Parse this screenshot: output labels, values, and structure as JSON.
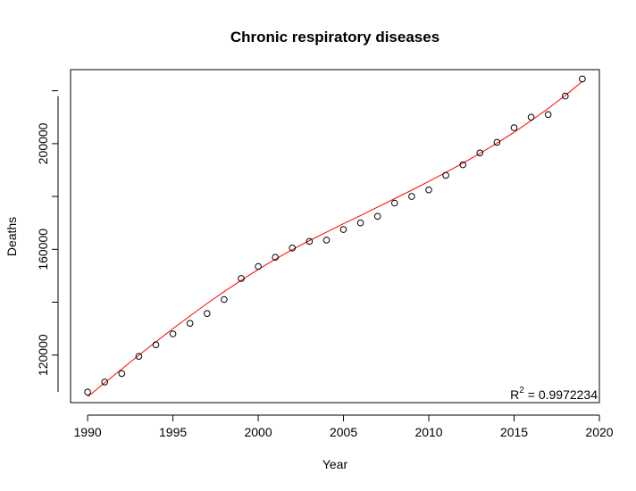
{
  "chart_data": {
    "type": "scatter",
    "title": "Chronic respiratory diseases",
    "xlabel": "Year",
    "ylabel": "Deaths",
    "xlim": [
      1989,
      2020
    ],
    "ylim": [
      102000,
      228000
    ],
    "xticks": [
      1990,
      1995,
      2000,
      2005,
      2010,
      2015,
      2020
    ],
    "yticks": [
      120000,
      160000,
      200000
    ],
    "grid": false,
    "annotation": {
      "prefix": "R",
      "superscript": "2",
      "value": " = 0.9972234"
    },
    "colors": {
      "points": "#000000",
      "fit_line": "#ff0000"
    },
    "series": [
      {
        "type": "scatter",
        "x": [
          1990,
          1991,
          1992,
          1993,
          1994,
          1995,
          1996,
          1997,
          1998,
          1999,
          2000,
          2001,
          2002,
          2003,
          2004,
          2005,
          2006,
          2007,
          2008,
          2009,
          2010,
          2011,
          2012,
          2013,
          2014,
          2015,
          2016,
          2017,
          2018,
          2019
        ],
        "values": [
          106000,
          109800,
          113000,
          119500,
          123900,
          128000,
          132000,
          135700,
          141000,
          149000,
          153500,
          157000,
          160500,
          163000,
          163500,
          167500,
          170000,
          172500,
          177500,
          180000,
          182500,
          188000,
          192000,
          196500,
          200500,
          206000,
          210000,
          211000,
          218000,
          224500
        ]
      },
      {
        "type": "line",
        "x": [
          1990,
          1991,
          1992,
          1993,
          1994,
          1995,
          1996,
          1997,
          1998,
          1999,
          2000,
          2001,
          2002,
          2003,
          2004,
          2005,
          2006,
          2007,
          2008,
          2009,
          2010,
          2011,
          2012,
          2013,
          2014,
          2015,
          2016,
          2017,
          2018,
          2019
        ],
        "values": [
          104200,
          109500,
          114700,
          119900,
          125000,
          130000,
          134800,
          139500,
          144000,
          148300,
          152400,
          156300,
          159900,
          163300,
          166500,
          169700,
          172800,
          176000,
          179200,
          182400,
          185700,
          189100,
          192600,
          196300,
          200200,
          204300,
          208700,
          213300,
          218200,
          223500
        ]
      }
    ]
  }
}
